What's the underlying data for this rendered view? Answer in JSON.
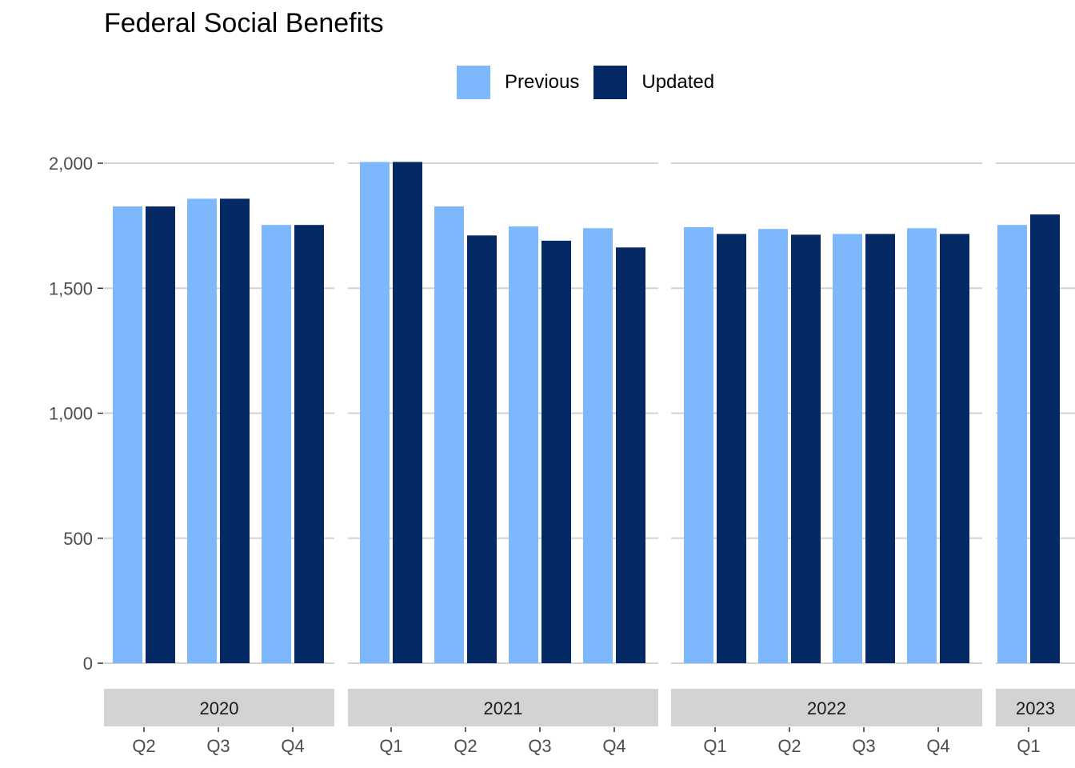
{
  "chart_data": {
    "type": "bar",
    "title": "Federal Social Benefits",
    "xlabel": "",
    "ylabel": "",
    "ylim": [
      0,
      2000
    ],
    "yticks": [
      "0",
      "500",
      "1,000",
      "1,500",
      "2,000"
    ],
    "grid": true,
    "legend_position": "top",
    "colors": {
      "Previous": "#7db8fc",
      "Updated": "#042965"
    },
    "panels": [
      {
        "label": "2020",
        "categories": [
          "Q2",
          "Q3",
          "Q4"
        ],
        "series": [
          {
            "name": "Previous",
            "values": [
              1827,
              1858,
              1753
            ]
          },
          {
            "name": "Updated",
            "values": [
              1827,
              1858,
              1753
            ]
          }
        ]
      },
      {
        "label": "2021",
        "categories": [
          "Q1",
          "Q2",
          "Q3",
          "Q4"
        ],
        "series": [
          {
            "name": "Previous",
            "values": [
              2005,
              1827,
              1747,
              1740
            ]
          },
          {
            "name": "Updated",
            "values": [
              2005,
              1711,
              1690,
              1663
            ]
          }
        ]
      },
      {
        "label": "2022",
        "categories": [
          "Q1",
          "Q2",
          "Q3",
          "Q4"
        ],
        "series": [
          {
            "name": "Previous",
            "values": [
              1744,
              1737,
              1717,
              1740
            ]
          },
          {
            "name": "Updated",
            "values": [
              1717,
              1714,
              1717,
              1717
            ]
          }
        ]
      },
      {
        "label": "2023",
        "categories": [
          "Q1"
        ],
        "series": [
          {
            "name": "Previous",
            "values": [
              1753
            ]
          },
          {
            "name": "Updated",
            "values": [
              1795
            ]
          }
        ]
      }
    ]
  },
  "legend": {
    "previous_label": "Previous",
    "updated_label": "Updated"
  }
}
